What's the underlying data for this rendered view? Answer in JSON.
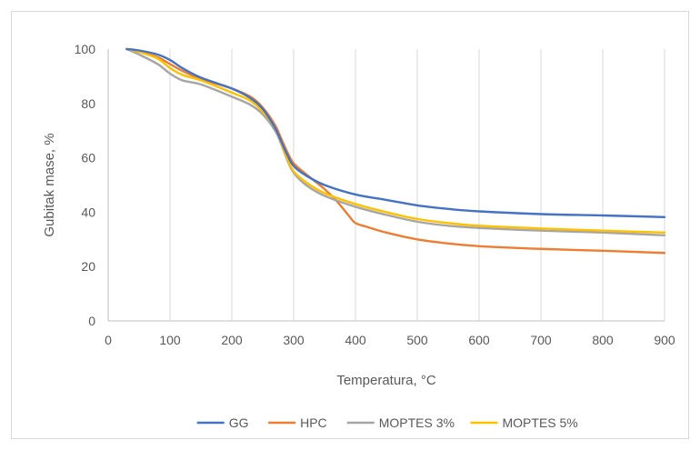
{
  "chart_data": {
    "type": "line",
    "title": "",
    "xlabel": "Temperatura, °C",
    "ylabel": "Gubitak mase, %",
    "xlim": [
      0,
      900
    ],
    "ylim": [
      0,
      100
    ],
    "xticks": [
      0,
      100,
      200,
      300,
      400,
      500,
      600,
      700,
      800,
      900
    ],
    "yticks": [
      0,
      20,
      40,
      60,
      80,
      100
    ],
    "grid": "vertical",
    "legend_position": "bottom",
    "series": [
      {
        "name": "GG",
        "color": "#4472C4",
        "x": [
          30,
          50,
          80,
          100,
          120,
          150,
          200,
          230,
          250,
          270,
          280,
          290,
          300,
          320,
          350,
          400,
          450,
          500,
          550,
          600,
          700,
          800,
          900
        ],
        "y": [
          100,
          99.5,
          98,
          96,
          93,
          89.5,
          85.5,
          82,
          78,
          71,
          66,
          61,
          57,
          53.5,
          50,
          46.5,
          44.5,
          42.5,
          41.2,
          40.3,
          39.3,
          38.8,
          38.2
        ]
      },
      {
        "name": "HPC",
        "color": "#ED7D31",
        "x": [
          30,
          50,
          80,
          100,
          120,
          150,
          200,
          230,
          250,
          270,
          280,
          290,
          300,
          320,
          350,
          370,
          390,
          400,
          420,
          450,
          500,
          550,
          600,
          700,
          800,
          900
        ],
        "y": [
          100,
          99,
          97,
          94.5,
          92,
          89,
          85.5,
          82.5,
          78.5,
          72,
          67,
          62,
          58,
          54,
          48.5,
          44,
          38.5,
          36,
          34.5,
          32.5,
          30,
          28.5,
          27.5,
          26.5,
          25.8,
          25
        ]
      },
      {
        "name": "MOPTES 3%",
        "color": "#A5A5A5",
        "x": [
          30,
          50,
          80,
          100,
          120,
          150,
          200,
          230,
          250,
          270,
          280,
          290,
          300,
          320,
          350,
          400,
          450,
          500,
          550,
          600,
          700,
          800,
          900
        ],
        "y": [
          100,
          98,
          94.5,
          91,
          88.5,
          87,
          82.5,
          79.5,
          76,
          70,
          65,
          59,
          54.5,
          50,
          46,
          42,
          39,
          36.5,
          35,
          34.2,
          33.2,
          32.5,
          31.5
        ]
      },
      {
        "name": "MOPTES 5%",
        "color": "#FFC000",
        "x": [
          30,
          50,
          80,
          100,
          120,
          150,
          200,
          230,
          250,
          270,
          280,
          290,
          300,
          320,
          350,
          400,
          450,
          500,
          550,
          600,
          700,
          800,
          900
        ],
        "y": [
          100,
          99,
          96.5,
          93,
          90.5,
          88.5,
          84,
          81,
          77,
          71,
          65.5,
          59.5,
          55,
          51,
          47,
          43,
          40,
          37.5,
          36,
          35,
          34,
          33.2,
          32.5
        ]
      }
    ]
  }
}
